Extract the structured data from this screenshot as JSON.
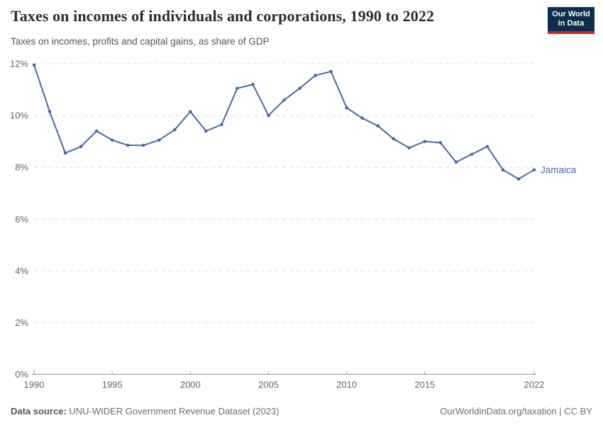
{
  "header": {
    "title": "Taxes on incomes of individuals and corporations, 1990 to 2022",
    "subtitle": "Taxes on incomes, profits and capital gains, as share of GDP",
    "logo": {
      "line1": "Our World",
      "line2": "in Data",
      "bg_color": "#0c2d4e",
      "accent_color": "#c52b20"
    }
  },
  "chart_data": {
    "type": "line",
    "title": "Taxes on incomes of individuals and corporations, 1990 to 2022",
    "subtitle": "Taxes on incomes, profits and capital gains, as share of GDP",
    "xlim": [
      1990,
      2022
    ],
    "ylim": [
      0,
      12
    ],
    "x_ticks": [
      1990,
      1995,
      2000,
      2005,
      2010,
      2015,
      2022
    ],
    "y_ticks": [
      0,
      2,
      4,
      6,
      8,
      10,
      12
    ],
    "y_tick_suffix": "%",
    "grid": "horizontal-dashed",
    "legend_position": "line-end-label",
    "series": [
      {
        "name": "Jamaica",
        "color": "#4C6A9C",
        "x": [
          1990,
          1991,
          1992,
          1993,
          1994,
          1995,
          1996,
          1997,
          1998,
          1999,
          2000,
          2001,
          2002,
          2003,
          2004,
          2005,
          2006,
          2007,
          2008,
          2009,
          2010,
          2011,
          2012,
          2013,
          2014,
          2015,
          2016,
          2017,
          2018,
          2019,
          2020,
          2021,
          2022
        ],
        "values": [
          11.95,
          10.15,
          8.55,
          8.8,
          9.4,
          9.05,
          8.85,
          8.85,
          9.05,
          9.45,
          10.15,
          9.4,
          9.65,
          11.05,
          11.2,
          10.0,
          10.6,
          11.05,
          11.55,
          11.7,
          10.3,
          9.9,
          9.6,
          9.1,
          8.75,
          9.0,
          8.95,
          8.2,
          8.5,
          8.8,
          7.9,
          7.55,
          7.9
        ]
      }
    ]
  },
  "footer": {
    "source_label": "Data source:",
    "source_text": "UNU-WIDER Government Revenue Dataset (2023)",
    "credit": "OurWorldinData.org/taxation | CC BY"
  },
  "colors": {
    "grid": "#dddddd",
    "axis": "#999999",
    "tick_label": "#666666",
    "series": "#4C6A9C",
    "title": "#2d2d2d",
    "subtitle": "#555555"
  }
}
